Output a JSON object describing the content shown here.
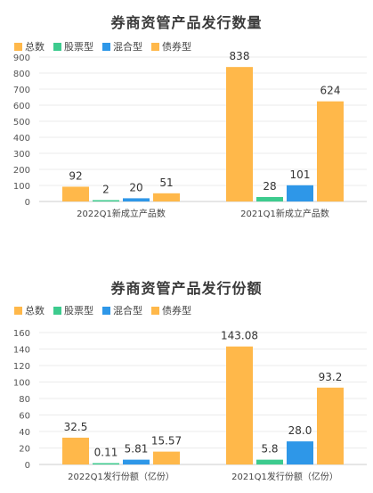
{
  "chart_data": [
    {
      "type": "bar",
      "title": "券商资管产品发行数量",
      "categories": [
        "2022Q1新成立产品数",
        "2021Q1新成立产品数"
      ],
      "series": [
        {
          "name": "总数",
          "color": "#FFB84A",
          "values": [
            92,
            838
          ],
          "labels": [
            "92",
            "838"
          ]
        },
        {
          "name": "股票型",
          "color": "#3DCB8E",
          "values": [
            2,
            28
          ],
          "labels": [
            "2",
            "28"
          ]
        },
        {
          "name": "混合型",
          "color": "#2E97E8",
          "values": [
            20,
            101
          ],
          "labels": [
            "20",
            "101"
          ]
        },
        {
          "name": "债券型",
          "color": "#FFB84A",
          "values": [
            51,
            624
          ],
          "labels": [
            "51",
            "624"
          ]
        }
      ],
      "ylim": [
        0,
        900
      ],
      "yticks": [
        "0",
        "100",
        "200",
        "300",
        "400",
        "500",
        "600",
        "700",
        "800",
        "900"
      ],
      "grid": true,
      "legend_position": "top-left"
    },
    {
      "type": "bar",
      "title": "券商资管产品发行份额",
      "categories": [
        "2022Q1发行份额（亿份）",
        "2021Q1发行份额（亿份）"
      ],
      "series": [
        {
          "name": "总数",
          "color": "#FFB84A",
          "values": [
            32.5,
            143.08
          ],
          "labels": [
            "32.5",
            "143.08"
          ]
        },
        {
          "name": "股票型",
          "color": "#3DCB8E",
          "values": [
            0.11,
            5.8
          ],
          "labels": [
            "0.11",
            "5.8"
          ]
        },
        {
          "name": "混合型",
          "color": "#2E97E8",
          "values": [
            5.81,
            28.0
          ],
          "labels": [
            "5.81",
            "28.0"
          ]
        },
        {
          "name": "债券型",
          "color": "#FFB84A",
          "values": [
            15.57,
            93.2
          ],
          "labels": [
            "15.57",
            "93.2"
          ]
        }
      ],
      "ylim": [
        0,
        160
      ],
      "yticks": [
        "0",
        "20",
        "40",
        "60",
        "80",
        "100",
        "120",
        "140",
        "160"
      ],
      "grid": true,
      "legend_position": "top-left"
    }
  ]
}
